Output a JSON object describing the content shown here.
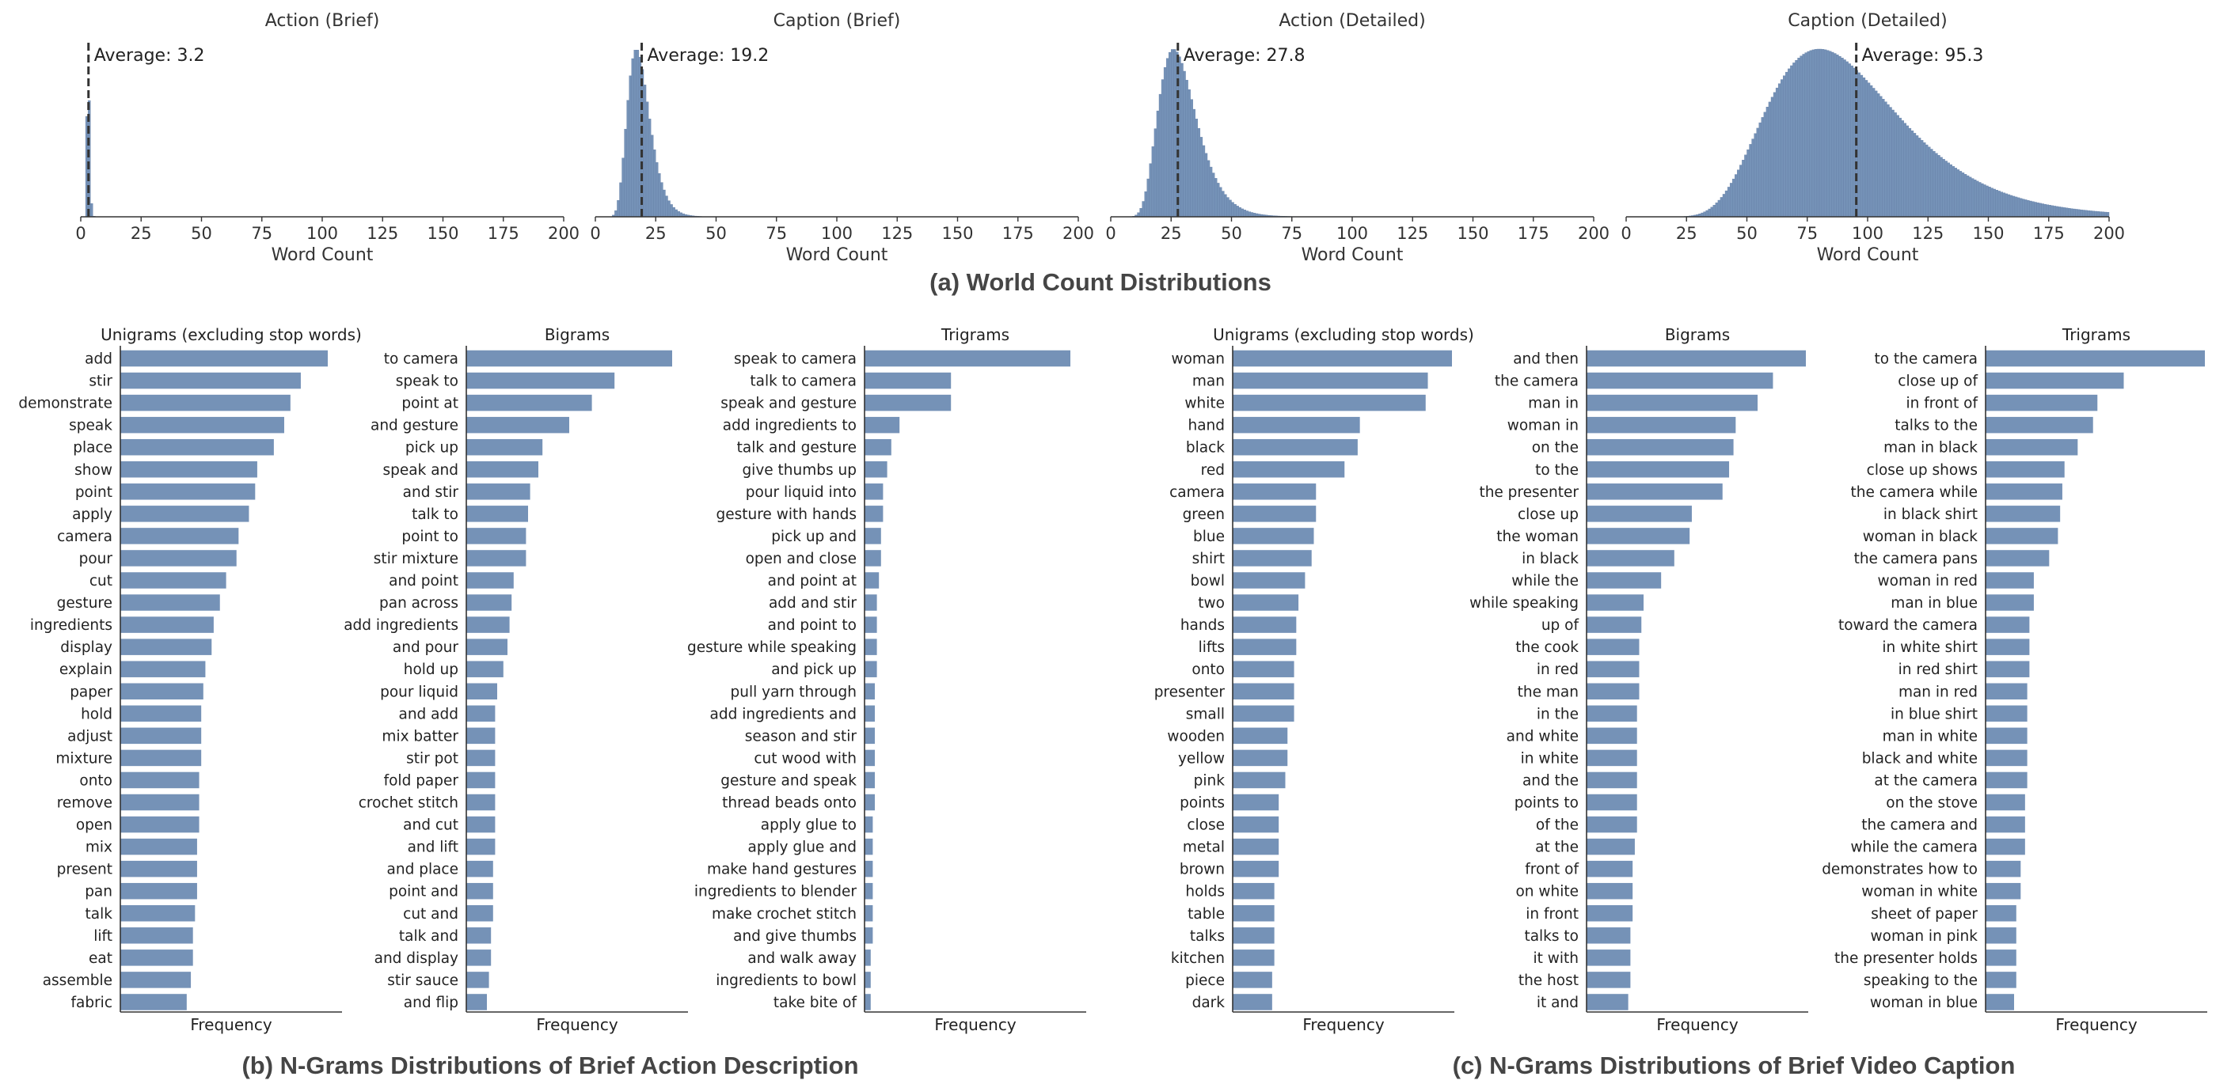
{
  "colors": {
    "bar": "#7592b7",
    "axis": "#333333",
    "average_line": "#333333"
  },
  "captions": {
    "a": "(a) World Count Distributions",
    "b": "(b) N-Grams Distributions of Brief Action Description",
    "c": "(c) N-Grams Distributions of Brief Video Caption"
  },
  "chart_data": [
    {
      "type": "histogram",
      "title": "Action (Brief)",
      "xlabel": "Word Count",
      "xlim": [
        0,
        200
      ],
      "xticks": [
        0,
        25,
        50,
        75,
        100,
        125,
        150,
        175,
        200
      ],
      "average": 3.2,
      "average_label": "Average: 3.2",
      "distribution": {
        "kind": "lognormal",
        "mode": 3,
        "spread": 0.18,
        "bin_width": 1,
        "relative_height": 1.0
      }
    },
    {
      "type": "histogram",
      "title": "Caption (Brief)",
      "xlabel": "Word Count",
      "xlim": [
        0,
        200
      ],
      "xticks": [
        0,
        25,
        50,
        75,
        100,
        125,
        150,
        175,
        200
      ],
      "average": 19.2,
      "average_label": "Average: 19.2",
      "distribution": {
        "kind": "lognormal",
        "mode": 17,
        "spread": 0.27,
        "bin_width": 1,
        "relative_height": 1.0
      }
    },
    {
      "type": "histogram",
      "title": "Action (Detailed)",
      "xlabel": "Word Count",
      "xlim": [
        0,
        200
      ],
      "xticks": [
        0,
        25,
        50,
        75,
        100,
        125,
        150,
        175,
        200
      ],
      "average": 27.8,
      "average_label": "Average: 27.8",
      "distribution": {
        "kind": "lognormal",
        "mode": 26,
        "spread": 0.3,
        "bin_width": 1,
        "relative_height": 1.0
      }
    },
    {
      "type": "histogram",
      "title": "Caption (Detailed)",
      "xlabel": "Word Count",
      "xlim": [
        0,
        200
      ],
      "xticks": [
        0,
        25,
        50,
        75,
        100,
        125,
        150,
        175,
        200
      ],
      "average": 95.3,
      "average_label": "Average: 95.3",
      "distribution": {
        "kind": "lognormal",
        "mode": 80,
        "spread": 0.34,
        "bin_width": 1,
        "relative_height": 1.0
      }
    },
    {
      "type": "bar",
      "orientation": "horizontal",
      "group": "b",
      "title": "Unigrams (excluding stop words)",
      "xlabel": "Frequency",
      "categories": [
        "add",
        "stir",
        "demonstrate",
        "speak",
        "place",
        "show",
        "point",
        "apply",
        "camera",
        "pour",
        "cut",
        "gesture",
        "ingredients",
        "display",
        "explain",
        "paper",
        "hold",
        "adjust",
        "mixture",
        "onto",
        "remove",
        "open",
        "mix",
        "present",
        "pan",
        "talk",
        "lift",
        "eat",
        "assemble",
        "fabric"
      ],
      "values": [
        100,
        87,
        82,
        79,
        74,
        66,
        65,
        62,
        57,
        56,
        51,
        48,
        45,
        44,
        41,
        40,
        39,
        39,
        39,
        38,
        38,
        38,
        37,
        37,
        37,
        36,
        35,
        35,
        34,
        32
      ]
    },
    {
      "type": "bar",
      "orientation": "horizontal",
      "group": "b",
      "title": "Bigrams",
      "xlabel": "Frequency",
      "categories": [
        "to camera",
        "speak to",
        "point at",
        "and gesture",
        "pick up",
        "speak and",
        "and stir",
        "talk to",
        "point to",
        "stir mixture",
        "and point",
        "pan across",
        "add ingredients",
        "and pour",
        "hold up",
        "pour liquid",
        "and add",
        "mix batter",
        "stir pot",
        "fold paper",
        "crochet stitch",
        "and cut",
        "and lift",
        "and place",
        "point and",
        "cut and",
        "talk and",
        "and display",
        "stir sauce",
        "and flip"
      ],
      "values": [
        100,
        72,
        61,
        50,
        37,
        35,
        31,
        30,
        29,
        29,
        23,
        22,
        21,
        20,
        18,
        15,
        14,
        14,
        14,
        14,
        14,
        14,
        14,
        13,
        13,
        13,
        12,
        12,
        11,
        10
      ]
    },
    {
      "type": "bar",
      "orientation": "horizontal",
      "group": "b",
      "title": "Trigrams",
      "xlabel": "Frequency",
      "categories": [
        "speak to camera",
        "talk to camera",
        "speak and gesture",
        "add ingredients to",
        "talk and gesture",
        "give thumbs up",
        "pour liquid into",
        "gesture with hands",
        "pick up and",
        "open and close",
        "and point at",
        "add and stir",
        "and point to",
        "gesture while speaking",
        "and pick up",
        "pull yarn through",
        "add ingredients and",
        "season and stir",
        "cut wood with",
        "gesture and speak",
        "thread beads onto",
        "apply glue to",
        "apply glue and",
        "make hand gestures",
        "ingredients to blender",
        "make crochet stitch",
        "and give thumbs",
        "and walk away",
        "ingredients to bowl",
        "take bite of"
      ],
      "values": [
        100,
        42,
        42,
        17,
        13,
        11,
        9,
        9,
        8,
        8,
        7,
        6,
        6,
        6,
        6,
        5,
        5,
        5,
        5,
        5,
        5,
        4,
        4,
        4,
        4,
        4,
        4,
        3,
        3,
        3
      ]
    },
    {
      "type": "bar",
      "orientation": "horizontal",
      "group": "c",
      "title": "Unigrams (excluding stop words)",
      "xlabel": "Frequency",
      "categories": [
        "woman",
        "man",
        "white",
        "hand",
        "black",
        "red",
        "camera",
        "green",
        "blue",
        "shirt",
        "bowl",
        "two",
        "hands",
        "lifts",
        "onto",
        "presenter",
        "small",
        "wooden",
        "yellow",
        "pink",
        "points",
        "close",
        "metal",
        "brown",
        "holds",
        "table",
        "talks",
        "kitchen",
        "piece",
        "dark"
      ],
      "values": [
        100,
        89,
        88,
        58,
        57,
        51,
        38,
        38,
        37,
        36,
        33,
        30,
        29,
        29,
        28,
        28,
        28,
        25,
        25,
        24,
        21,
        21,
        21,
        21,
        19,
        19,
        19,
        19,
        18,
        18
      ]
    },
    {
      "type": "bar",
      "orientation": "horizontal",
      "group": "c",
      "title": "Bigrams",
      "xlabel": "Frequency",
      "categories": [
        "and then",
        "the camera",
        "man in",
        "woman in",
        "on the",
        "to the",
        "the presenter",
        "close up",
        "the woman",
        "in black",
        "while the",
        "while speaking",
        "up of",
        "the cook",
        "in red",
        "the man",
        "in the",
        "and white",
        "in white",
        "and the",
        "points to",
        "of the",
        "at the",
        "front of",
        "on white",
        "in front",
        "talks to",
        "it with",
        "the host",
        "it and"
      ],
      "values": [
        100,
        85,
        78,
        68,
        67,
        65,
        62,
        48,
        47,
        40,
        34,
        26,
        25,
        24,
        24,
        24,
        23,
        23,
        23,
        23,
        23,
        23,
        22,
        21,
        21,
        21,
        20,
        20,
        20,
        19
      ]
    },
    {
      "type": "bar",
      "orientation": "horizontal",
      "group": "c",
      "title": "Trigrams",
      "xlabel": "Frequency",
      "categories": [
        "to the camera",
        "close up of",
        "in front of",
        "talks to the",
        "man in black",
        "close up shows",
        "the camera while",
        "in black shirt",
        "woman in black",
        "the camera pans",
        "woman in red",
        "man in blue",
        "toward the camera",
        "in white shirt",
        "in red shirt",
        "man in red",
        "in blue shirt",
        "man in white",
        "black and white",
        "at the camera",
        "on the stove",
        "the camera and",
        "while the camera",
        "demonstrates how to",
        "woman in white",
        "sheet of paper",
        "woman in pink",
        "the presenter holds",
        "speaking to the",
        "woman in blue"
      ],
      "values": [
        100,
        63,
        51,
        49,
        42,
        36,
        35,
        34,
        33,
        29,
        22,
        22,
        20,
        20,
        20,
        19,
        19,
        19,
        19,
        19,
        18,
        18,
        18,
        16,
        16,
        14,
        14,
        14,
        14,
        13
      ]
    }
  ]
}
